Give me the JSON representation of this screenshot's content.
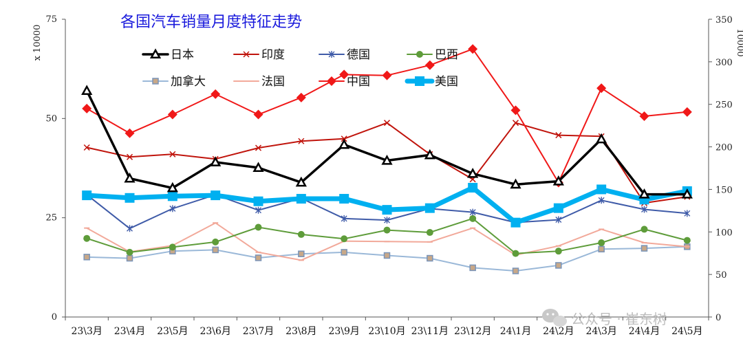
{
  "chart_data": {
    "type": "line",
    "title": "各国汽车销量月度特征走势",
    "y_left_label": "x 10000",
    "y_right_label": "10000",
    "y_left_lim": [
      0,
      75
    ],
    "y_left_ticks": [
      0,
      25,
      50,
      75
    ],
    "y_right_lim": [
      0,
      350
    ],
    "y_right_ticks": [
      0,
      50,
      100,
      150,
      200,
      250,
      300,
      350
    ],
    "grid": false,
    "legend_position": "top-left",
    "categories": [
      "23\\3月",
      "23\\4月",
      "23\\5月",
      "23\\6月",
      "23\\7月",
      "23\\8月",
      "23\\9月",
      "23\\10月",
      "23\\11月",
      "23\\12月",
      "24\\1月",
      "24\\2月",
      "24\\3月",
      "24\\4月",
      "24\\5月"
    ],
    "series": [
      {
        "name": "日本",
        "axis": "left",
        "color": "#000000",
        "marker": "triangle",
        "width": 3.5,
        "values": [
          57.0,
          34.9,
          32.5,
          39.0,
          37.6,
          33.9,
          43.4,
          39.4,
          40.8,
          36.1,
          33.4,
          34.2,
          44.8,
          30.9,
          30.9
        ]
      },
      {
        "name": "印度",
        "axis": "left",
        "color": "#c0140c",
        "marker": "x",
        "width": 2,
        "values": [
          42.7,
          40.3,
          41.0,
          39.8,
          42.6,
          44.3,
          44.9,
          48.9,
          41.0,
          34.7,
          48.9,
          45.8,
          45.5,
          28.7,
          30.3
        ]
      },
      {
        "name": "德国",
        "axis": "left",
        "color": "#3f5ba8",
        "marker": "star",
        "width": 2,
        "values": [
          30.8,
          22.3,
          27.3,
          30.8,
          26.9,
          29.9,
          24.8,
          24.4,
          27.3,
          26.4,
          23.8,
          24.5,
          29.4,
          27.1,
          26.1
        ]
      },
      {
        "name": "巴西",
        "axis": "left",
        "color": "#5e9c3a",
        "marker": "circle",
        "width": 2,
        "values": [
          19.8,
          16.3,
          17.6,
          18.9,
          22.6,
          20.8,
          19.7,
          21.9,
          21.3,
          24.8,
          16.0,
          16.6,
          18.7,
          22.1,
          19.3
        ]
      },
      {
        "name": "加拿大",
        "axis": "left",
        "color": "#9ab8d8",
        "marker": "square",
        "width": 2,
        "values": [
          15.1,
          14.8,
          16.6,
          16.9,
          14.9,
          15.9,
          16.3,
          15.5,
          14.8,
          12.4,
          11.6,
          13.0,
          17.1,
          17.3,
          17.7
        ]
      },
      {
        "name": "法国",
        "axis": "left",
        "color": "#f2a99a",
        "marker": "dash",
        "width": 2,
        "values": [
          22.4,
          16.4,
          18.0,
          23.7,
          16.3,
          14.3,
          19.1,
          19.0,
          18.9,
          22.4,
          15.6,
          17.9,
          22.1,
          18.7,
          17.7
        ]
      },
      {
        "name": "中国",
        "axis": "right",
        "color": "#f01818",
        "marker": "diamond",
        "width": 2,
        "values": [
          245,
          216,
          238,
          262,
          238,
          258,
          285,
          284,
          296,
          315,
          243,
          158,
          269,
          236,
          241
        ]
      },
      {
        "name": "美国",
        "axis": "right",
        "color": "#00b0f0",
        "marker": "square",
        "width": 7,
        "values": [
          143,
          140,
          142,
          143,
          136,
          139,
          139,
          126,
          128,
          152,
          111,
          128,
          150,
          138,
          148
        ]
      }
    ]
  },
  "watermark": {
    "text": "公众号 · 崔东树",
    "icon": "wechat-icon"
  }
}
